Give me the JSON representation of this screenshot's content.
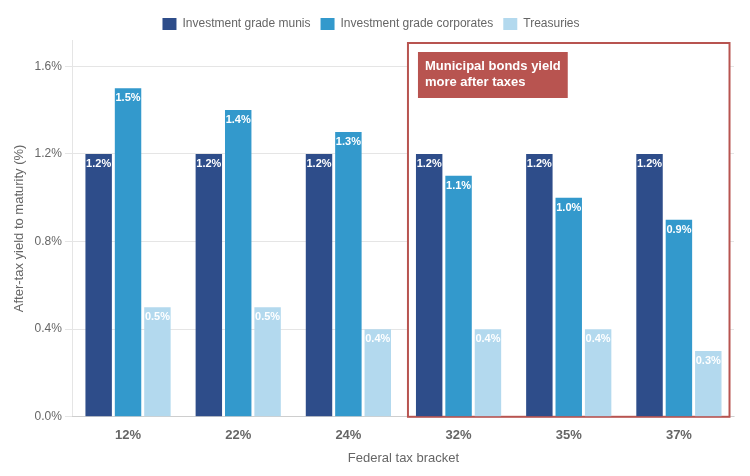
{
  "chart_data": {
    "type": "bar",
    "xlabel": "Federal tax bracket",
    "ylabel": "After-tax yield to maturity (%)",
    "categories": [
      "12%",
      "22%",
      "24%",
      "32%",
      "35%",
      "37%"
    ],
    "series": [
      {
        "name": "Investment grade munis",
        "color": "#2e4d8a",
        "values": [
          1.2,
          1.2,
          1.2,
          1.2,
          1.2,
          1.2
        ],
        "value_labels": [
          "1.2%",
          "1.2%",
          "1.2%",
          "1.2%",
          "1.2%",
          "1.2%"
        ]
      },
      {
        "name": "Investment grade corporates",
        "color": "#3399cc",
        "values": [
          1.5,
          1.4,
          1.3,
          1.1,
          1.0,
          0.9
        ],
        "value_labels": [
          "1.5%",
          "1.4%",
          "1.3%",
          "1.1%",
          "1.0%",
          "0.9%"
        ]
      },
      {
        "name": "Treasuries",
        "color": "#b3d9ee",
        "values": [
          0.5,
          0.5,
          0.4,
          0.4,
          0.4,
          0.3
        ],
        "value_labels": [
          "0.5%",
          "0.5%",
          "0.4%",
          "0.4%",
          "0.4%",
          "0.3%"
        ]
      }
    ],
    "ylim": [
      0,
      1.72
    ],
    "yticks": [
      {
        "value": 0.0,
        "label": "0.0%"
      },
      {
        "value": 0.4,
        "label": "0.4%"
      },
      {
        "value": 0.8,
        "label": "0.8%"
      },
      {
        "value": 1.2,
        "label": "1.2%"
      },
      {
        "value": 1.6,
        "label": "1.6%"
      }
    ],
    "grid": true,
    "legend": "top",
    "data_labels": true,
    "annotations": [
      {
        "text": "Municipal bonds yield\nmore after taxes",
        "x": "32%",
        "color": "#b85450"
      }
    ]
  }
}
